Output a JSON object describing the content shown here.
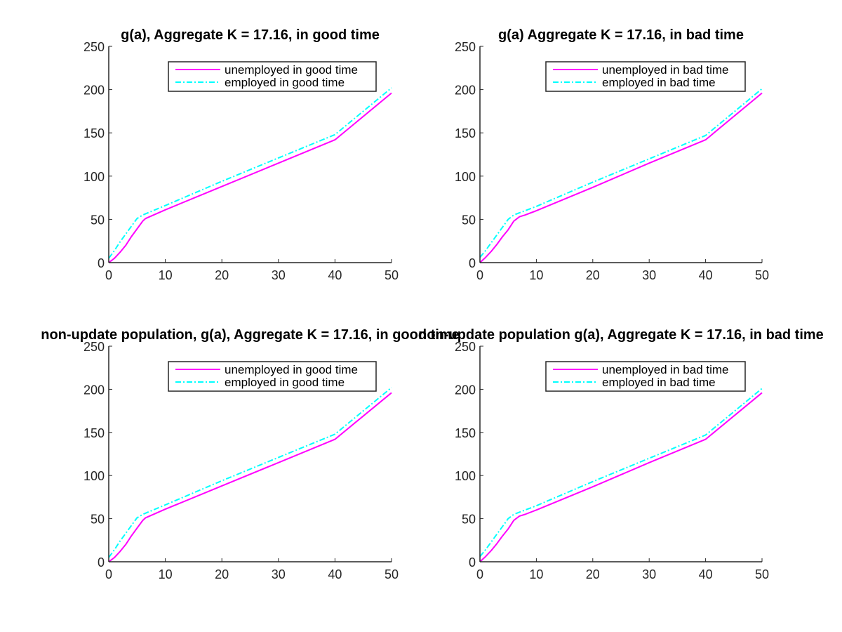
{
  "colors": {
    "background": "#ffffff",
    "axis": "#262626",
    "unemployed": "#ff00ff",
    "employed": "#00ffff"
  },
  "chart_data": [
    {
      "type": "line",
      "title": "g(a), Aggregate K = 17.16, in good time",
      "xlabel": "",
      "ylabel": "",
      "xlim": [
        0,
        50
      ],
      "ylim": [
        0,
        250
      ],
      "xticks": [
        0,
        10,
        20,
        30,
        40,
        50
      ],
      "yticks": [
        0,
        50,
        100,
        150,
        200,
        250
      ],
      "grid": false,
      "legend_position": "top-right",
      "series": [
        {
          "name": "unemployed in good time",
          "color": "#ff00ff",
          "style": "solid",
          "x": [
            0,
            1,
            2,
            3,
            4,
            5,
            6,
            6.5,
            10,
            20,
            30,
            40,
            50
          ],
          "y": [
            0,
            5,
            12,
            20,
            30,
            39,
            48,
            51,
            61,
            88,
            115,
            142,
            196
          ]
        },
        {
          "name": "employed in good time",
          "color": "#00ffff",
          "style": "dashdot",
          "x": [
            0,
            1,
            2,
            3,
            4,
            5,
            6,
            10,
            20,
            30,
            40,
            50
          ],
          "y": [
            5,
            14,
            24,
            33,
            42,
            51,
            55,
            66,
            94,
            121,
            148,
            202
          ]
        }
      ]
    },
    {
      "type": "line",
      "title": "g(a) Aggregate K = 17.16, in bad time",
      "xlabel": "",
      "ylabel": "",
      "xlim": [
        0,
        50
      ],
      "ylim": [
        0,
        250
      ],
      "xticks": [
        0,
        10,
        20,
        30,
        40,
        50
      ],
      "yticks": [
        0,
        50,
        100,
        150,
        200,
        250
      ],
      "grid": false,
      "legend_position": "top-right",
      "series": [
        {
          "name": "unemployed in bad time",
          "color": "#ff00ff",
          "style": "solid",
          "x": [
            0,
            1,
            2,
            3,
            4,
            5,
            6,
            7,
            8,
            10,
            20,
            30,
            40,
            50
          ],
          "y": [
            0,
            6,
            13,
            21,
            30,
            38,
            48,
            53,
            55,
            60,
            87,
            115,
            142,
            196
          ]
        },
        {
          "name": "employed in bad time",
          "color": "#00ffff",
          "style": "dashdot",
          "x": [
            0,
            1,
            2,
            3,
            4,
            5,
            6,
            10,
            20,
            30,
            40,
            50
          ],
          "y": [
            6,
            14,
            23,
            32,
            41,
            50,
            55,
            65,
            93,
            120,
            147,
            201
          ]
        }
      ]
    },
    {
      "type": "line",
      "title": "non-update population, g(a), Aggregate K = 17.16, in good time",
      "xlabel": "",
      "ylabel": "",
      "xlim": [
        0,
        50
      ],
      "ylim": [
        0,
        250
      ],
      "xticks": [
        0,
        10,
        20,
        30,
        40,
        50
      ],
      "yticks": [
        0,
        50,
        100,
        150,
        200,
        250
      ],
      "grid": false,
      "legend_position": "top-right",
      "series": [
        {
          "name": "unemployed in good time",
          "color": "#ff00ff",
          "style": "solid",
          "x": [
            0,
            1,
            2,
            3,
            4,
            5,
            6,
            6.5,
            10,
            20,
            30,
            40,
            50
          ],
          "y": [
            0,
            5,
            12,
            20,
            30,
            39,
            48,
            51,
            61,
            88,
            115,
            142,
            196
          ]
        },
        {
          "name": "employed in good time",
          "color": "#00ffff",
          "style": "dashdot",
          "x": [
            0,
            1,
            2,
            3,
            4,
            5,
            6,
            10,
            20,
            30,
            40,
            50
          ],
          "y": [
            5,
            14,
            24,
            33,
            42,
            51,
            55,
            66,
            94,
            121,
            148,
            202
          ]
        }
      ]
    },
    {
      "type": "line",
      "title": "non-update population g(a), Aggregate K = 17.16, in bad time",
      "xlabel": "",
      "ylabel": "",
      "xlim": [
        0,
        50
      ],
      "ylim": [
        0,
        250
      ],
      "xticks": [
        0,
        10,
        20,
        30,
        40,
        50
      ],
      "yticks": [
        0,
        50,
        100,
        150,
        200,
        250
      ],
      "grid": false,
      "legend_position": "top-right",
      "series": [
        {
          "name": "unemployed in bad time",
          "color": "#ff00ff",
          "style": "solid",
          "x": [
            0,
            1,
            2,
            3,
            4,
            5,
            6,
            7,
            8,
            10,
            20,
            30,
            40,
            50
          ],
          "y": [
            0,
            6,
            13,
            21,
            30,
            38,
            48,
            53,
            55,
            60,
            87,
            115,
            142,
            196
          ]
        },
        {
          "name": "employed in bad time",
          "color": "#00ffff",
          "style": "dashdot",
          "x": [
            0,
            1,
            2,
            3,
            4,
            5,
            6,
            10,
            20,
            30,
            40,
            50
          ],
          "y": [
            6,
            14,
            23,
            32,
            41,
            50,
            55,
            65,
            93,
            120,
            147,
            201
          ]
        }
      ]
    }
  ]
}
